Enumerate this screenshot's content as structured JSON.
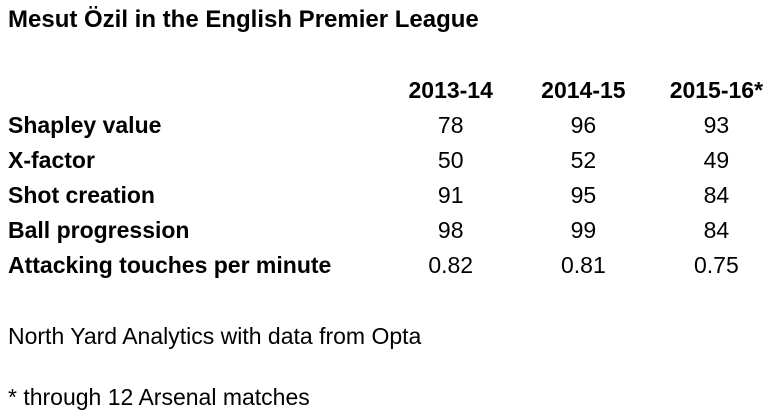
{
  "title": "Mesut Özil in the English Premier League",
  "chart_data": {
    "type": "table",
    "title": "Mesut Özil in the English Premier League",
    "columns": [
      "2013-14",
      "2014-15",
      "2015-16*"
    ],
    "rows": [
      {
        "label": "Shapley value",
        "values": [
          "78",
          "96",
          "93"
        ]
      },
      {
        "label": "X-factor",
        "values": [
          "50",
          "52",
          "49"
        ]
      },
      {
        "label": "Shot creation",
        "values": [
          "91",
          "95",
          "84"
        ]
      },
      {
        "label": "Ball progression",
        "values": [
          "98",
          "99",
          "84"
        ]
      },
      {
        "label": "Attacking touches per minute",
        "values": [
          "0.82",
          "0.81",
          "0.75"
        ]
      }
    ]
  },
  "source": "North Yard Analytics with data from Opta",
  "footnote": "* through 12 Arsenal matches"
}
